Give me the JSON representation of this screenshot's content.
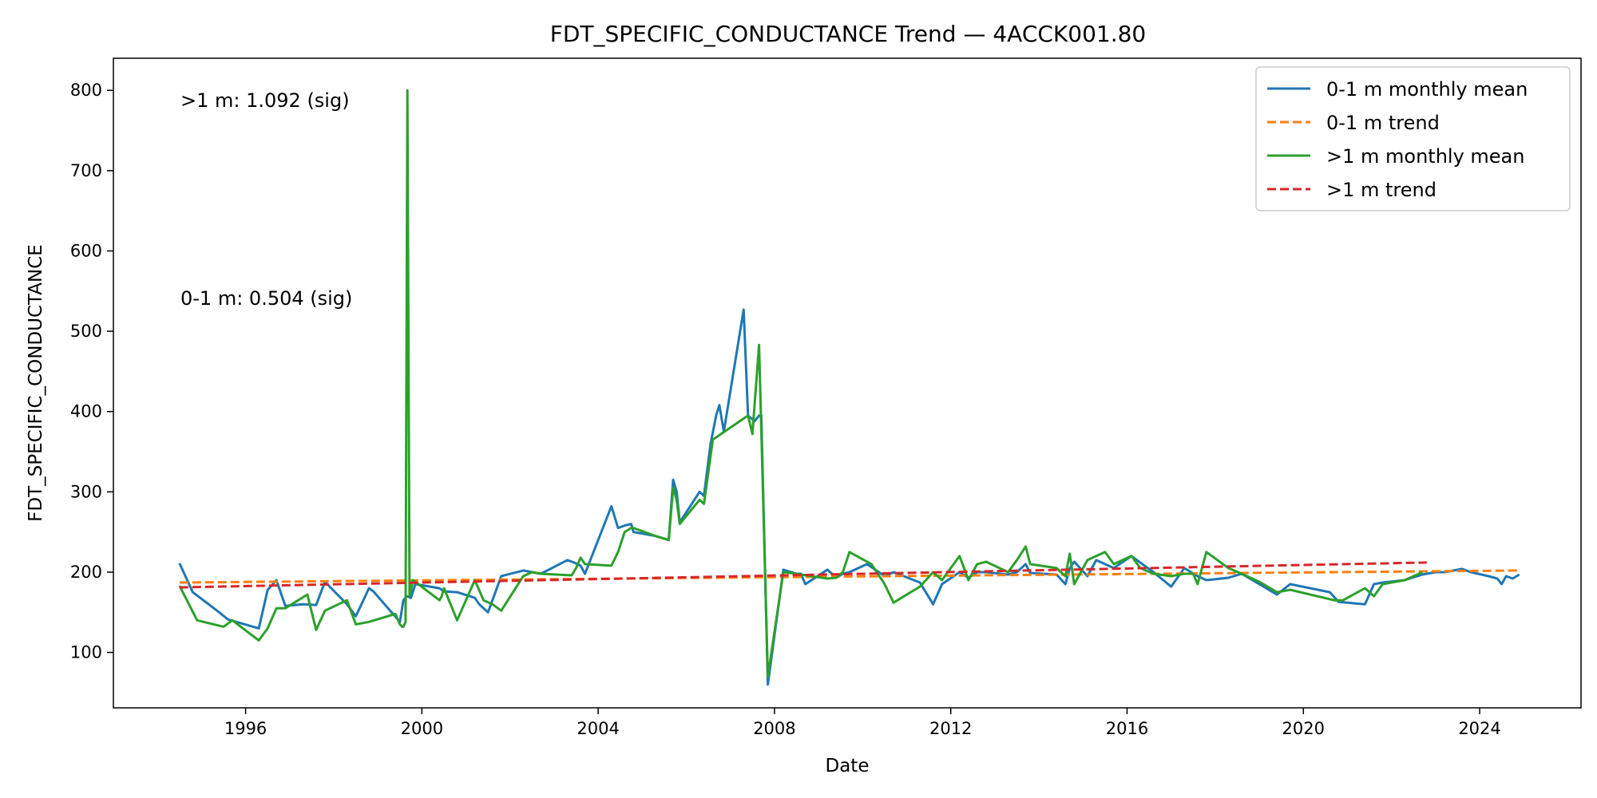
{
  "chart_data": {
    "type": "line",
    "title": "FDT_SPECIFIC_CONDUCTANCE Trend — 4ACCK001.80",
    "xlabel": "Date",
    "ylabel": "FDT_SPECIFIC_CONDUCTANCE",
    "xlim": [
      1993.0,
      2026.3
    ],
    "ylim": [
      31,
      840
    ],
    "xticks": [
      1996,
      2000,
      2004,
      2008,
      2012,
      2016,
      2020,
      2024
    ],
    "yticks": [
      100,
      200,
      300,
      400,
      500,
      600,
      700,
      800
    ],
    "grid": false,
    "legend_position": "top-right",
    "annotations": [
      {
        "text": ">1 m: 1.092 (sig)"
      },
      {
        "text": "0-1 m: 0.504 (sig)"
      }
    ],
    "series": [
      {
        "name": "0-1 m monthly mean",
        "color": "#1f77b4",
        "style": "solid",
        "x": [
          1994.5,
          1994.8,
          1995.4,
          1995.6,
          1996.3,
          1996.5,
          1996.7,
          1996.9,
          1997.3,
          1997.6,
          1997.8,
          1998.3,
          1998.5,
          1998.8,
          1998.9,
          1999.5,
          1999.58,
          1999.66,
          1999.75,
          1999.85,
          2000.4,
          2000.5,
          2000.8,
          2001.2,
          2001.3,
          2001.5,
          2001.8,
          2002.3,
          2002.5,
          2002.7,
          2003.3,
          2003.45,
          2003.6,
          2003.7,
          2004.3,
          2004.45,
          2004.6,
          2004.75,
          2004.8,
          2005.3,
          2005.6,
          2005.7,
          2005.78,
          2005.85,
          2006.3,
          2006.4,
          2006.55,
          2006.68,
          2006.75,
          2006.85,
          2007.3,
          2007.4,
          2007.55,
          2007.65,
          2007.7,
          2007.85,
          2008.2,
          2008.5,
          2008.6,
          2008.7,
          2009.2,
          2009.4,
          2009.55,
          2009.7,
          2010.1,
          2010.5,
          2010.7,
          2011.3,
          2011.6,
          2011.8,
          2012.2,
          2012.4,
          2012.6,
          2012.8,
          2013.3,
          2013.5,
          2013.7,
          2013.8,
          2014.4,
          2014.6,
          2014.7,
          2014.8,
          2015.1,
          2015.3,
          2015.5,
          2015.7,
          2016.1,
          2016.3,
          2016.6,
          2017.0,
          2017.3,
          2017.6,
          2017.8,
          2018.3,
          2018.6,
          2019.0,
          2019.4,
          2019.7,
          2020.6,
          2020.8,
          2021.4,
          2021.6,
          2021.8,
          2022.3,
          2022.7,
          2023.0,
          2023.2,
          2023.6,
          2023.8,
          2024.2,
          2024.4,
          2024.5,
          2024.6,
          2024.75,
          2024.9
        ],
        "values": [
          211,
          175,
          150,
          141,
          130,
          178,
          190,
          158,
          160,
          159,
          188,
          160,
          145,
          180,
          176,
          138,
          165,
          170,
          168,
          185,
          180,
          176,
          175,
          168,
          160,
          150,
          195,
          202,
          200,
          198,
          215,
          212,
          208,
          198,
          282,
          255,
          258,
          260,
          250,
          245,
          240,
          315,
          300,
          262,
          300,
          295,
          360,
          396,
          408,
          375,
          527,
          395,
          388,
          395,
          395,
          60,
          203,
          198,
          198,
          185,
          203,
          193,
          198,
          200,
          210,
          195,
          200,
          187,
          160,
          185,
          200,
          193,
          200,
          200,
          197,
          200,
          210,
          199,
          197,
          185,
          205,
          213,
          195,
          215,
          210,
          205,
          220,
          212,
          200,
          182,
          205,
          195,
          190,
          193,
          198,
          185,
          172,
          185,
          175,
          163,
          160,
          185,
          187,
          190,
          197,
          200,
          200,
          204,
          200,
          195,
          192,
          185,
          195,
          192,
          197
        ],
        "values_note": ""
      },
      {
        "name": "0-1 m trend",
        "color": "#ff7f0e",
        "style": "dashed",
        "x": [
          1994.5,
          2024.9
        ],
        "values": [
          187,
          202
        ]
      },
      {
        "name": ">1 m monthly mean",
        "color": "#2ca02c",
        "style": "solid",
        "x": [
          1994.5,
          1994.9,
          1995.5,
          1995.7,
          1996.3,
          1996.5,
          1996.7,
          1996.9,
          1997.4,
          1997.6,
          1997.8,
          1998.3,
          1998.5,
          1998.8,
          1999.4,
          1999.5,
          1999.55,
          1999.58,
          1999.63,
          1999.67,
          1999.72,
          1999.8,
          2000.4,
          2000.45,
          2000.5,
          2000.8,
          2001.2,
          2001.4,
          2001.6,
          2001.8,
          2002.3,
          2002.5,
          2002.7,
          2003.4,
          2003.5,
          2003.6,
          2003.7,
          2004.3,
          2004.45,
          2004.6,
          2004.75,
          2004.8,
          2005.3,
          2005.6,
          2005.7,
          2005.78,
          2005.85,
          2006.3,
          2006.4,
          2006.6,
          2007.4,
          2007.5,
          2007.65,
          2007.7,
          2007.85,
          2008.2,
          2008.5,
          2008.6,
          2009.2,
          2009.4,
          2009.55,
          2009.7,
          2010.2,
          2010.5,
          2010.7,
          2011.3,
          2011.6,
          2011.8,
          2012.2,
          2012.4,
          2012.6,
          2012.8,
          2013.3,
          2013.5,
          2013.7,
          2013.8,
          2014.4,
          2014.6,
          2014.7,
          2014.8,
          2015.1,
          2015.3,
          2015.5,
          2015.7,
          2016.1,
          2016.3,
          2016.6,
          2017.0,
          2017.3,
          2017.5,
          2017.6,
          2017.8,
          2018.3,
          2018.6,
          2019.0,
          2019.4,
          2019.7,
          2020.7,
          2020.9,
          2021.4,
          2021.6,
          2021.8,
          2022.3,
          2022.7
        ],
        "values": [
          183,
          140,
          132,
          140,
          115,
          130,
          155,
          155,
          172,
          128,
          152,
          165,
          135,
          138,
          148,
          135,
          132,
          132,
          138,
          800,
          170,
          190,
          165,
          170,
          180,
          140,
          190,
          165,
          160,
          152,
          195,
          200,
          198,
          196,
          205,
          218,
          210,
          208,
          225,
          250,
          255,
          255,
          245,
          240,
          305,
          290,
          260,
          290,
          285,
          365,
          395,
          372,
          483,
          378,
          70,
          200,
          198,
          197,
          192,
          193,
          200,
          225,
          210,
          185,
          162,
          182,
          200,
          190,
          220,
          190,
          210,
          213,
          200,
          215,
          232,
          210,
          205,
          195,
          223,
          185,
          215,
          220,
          225,
          210,
          220,
          205,
          198,
          195,
          198,
          198,
          185,
          225,
          205,
          198,
          188,
          175,
          178,
          165,
          165,
          180,
          170,
          185,
          190,
          200
        ],
        "values_note": ""
      },
      {
        "name": ">1 m trend",
        "color": "#d62728",
        "style": "dashed",
        "x": [
          1994.5,
          2022.8
        ],
        "values": [
          181,
          212
        ]
      }
    ]
  }
}
